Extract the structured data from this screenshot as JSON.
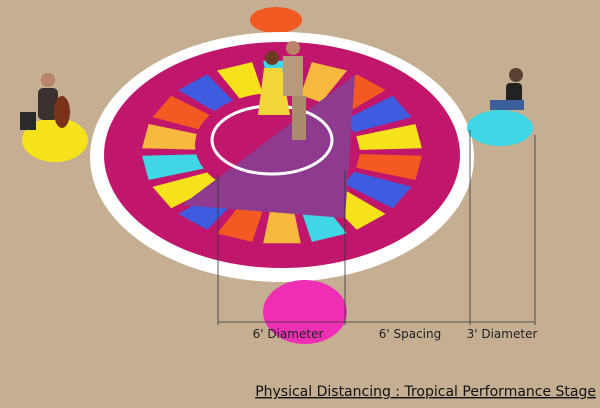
{
  "dimensions": [
    {
      "label": "6' Diameter"
    },
    {
      "label": "6' Spacing"
    },
    {
      "label": "3' Diameter"
    }
  ],
  "caption": "Physical Distancing : Tropical Performance Stage"
}
